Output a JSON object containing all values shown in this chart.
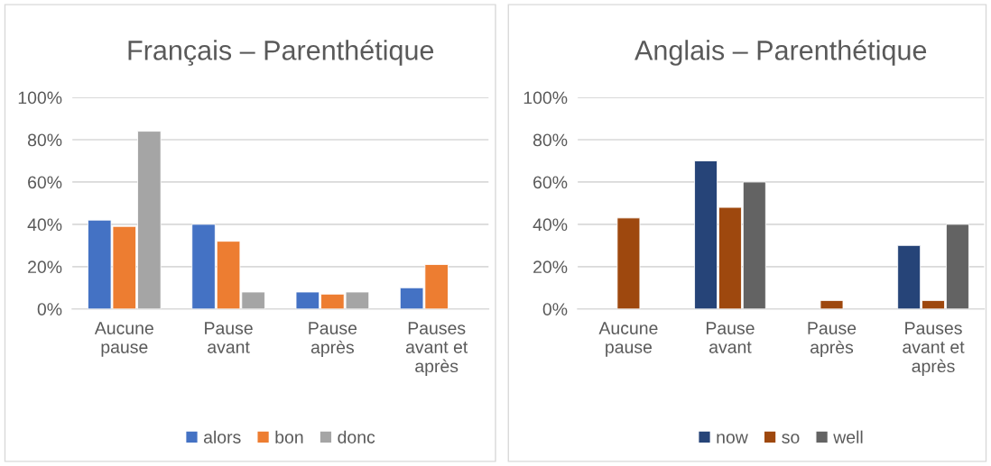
{
  "chart_data": [
    {
      "type": "bar",
      "title": "Français – Parenthétique",
      "categories": [
        "Aucune pause",
        "Pause avant",
        "Pause après",
        "Pauses avant et après"
      ],
      "series": [
        {
          "name": "alors",
          "color": "#4472c4",
          "values": [
            42,
            40,
            8,
            10
          ]
        },
        {
          "name": "bon",
          "color": "#ed7d31",
          "values": [
            39,
            32,
            7,
            21
          ]
        },
        {
          "name": "donc",
          "color": "#a5a5a5",
          "values": [
            84,
            8,
            8,
            null
          ]
        }
      ],
      "ylim": [
        0,
        100
      ],
      "yticks": [
        {
          "value": 0,
          "label": "0%"
        },
        {
          "value": 20,
          "label": "20%"
        },
        {
          "value": 40,
          "label": "40%"
        },
        {
          "value": 60,
          "label": "60%"
        },
        {
          "value": 80,
          "label": "80%"
        },
        {
          "value": 100,
          "label": "100%"
        }
      ],
      "grid": "y",
      "legend": "bottom"
    },
    {
      "type": "bar",
      "title": "Anglais – Parenthétique",
      "categories": [
        "Aucune pause",
        "Pause avant",
        "Pause après",
        "Pauses avant et après"
      ],
      "series": [
        {
          "name": "now",
          "color": "#264478",
          "values": [
            null,
            70,
            null,
            30
          ]
        },
        {
          "name": "so",
          "color": "#9e480e",
          "values": [
            43,
            48,
            4,
            4
          ]
        },
        {
          "name": "well",
          "color": "#636363",
          "values": [
            null,
            60,
            null,
            40
          ]
        }
      ],
      "ylim": [
        0,
        100
      ],
      "yticks": [
        {
          "value": 0,
          "label": "0%"
        },
        {
          "value": 20,
          "label": "20%"
        },
        {
          "value": 40,
          "label": "40%"
        },
        {
          "value": 60,
          "label": "60%"
        },
        {
          "value": 80,
          "label": "80%"
        },
        {
          "value": 100,
          "label": "100%"
        }
      ],
      "grid": "y",
      "legend": "bottom"
    }
  ]
}
